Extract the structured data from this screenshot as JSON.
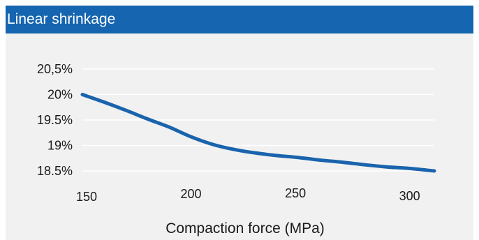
{
  "header": {
    "title": "Linear shrinkage"
  },
  "colors": {
    "header_bg": "#1565b0",
    "panel_bg": "#f1f1f1",
    "line": "#1a63ad",
    "grid": "#ffffff"
  },
  "chart_data": {
    "type": "line",
    "title": "Linear shrinkage",
    "xlabel": "Compaction force (MPa)",
    "ylabel": "",
    "y_ticks": [
      {
        "value": 20.5,
        "label": "20,5%"
      },
      {
        "value": 20.0,
        "label": "20%"
      },
      {
        "value": 19.5,
        "label": "19.5%"
      },
      {
        "value": 19.0,
        "label": "19%"
      },
      {
        "value": 18.5,
        "label": "18.5%"
      }
    ],
    "x_ticks": [
      {
        "value": 150,
        "label": "150"
      },
      {
        "value": 200,
        "label": "200"
      },
      {
        "value": 250,
        "label": "250"
      },
      {
        "value": 300,
        "label": "300"
      }
    ],
    "xlim": [
      150,
      312
    ],
    "ylim": [
      18.5,
      20.5
    ],
    "grid": true,
    "series": [
      {
        "x": [
          150,
          160,
          170,
          180,
          190,
          200,
          210,
          220,
          230,
          240,
          250,
          260,
          270,
          280,
          290,
          300,
          312
        ],
        "y": [
          20.0,
          19.85,
          19.69,
          19.52,
          19.36,
          19.17,
          19.02,
          18.92,
          18.85,
          18.8,
          18.76,
          18.71,
          18.67,
          18.62,
          18.58,
          18.55,
          18.5
        ]
      }
    ]
  }
}
